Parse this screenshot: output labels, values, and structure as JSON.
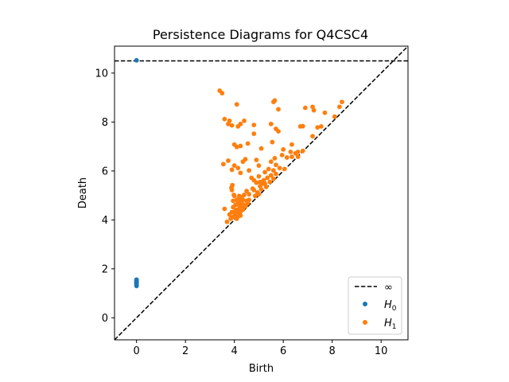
{
  "chart_data": {
    "type": "scatter",
    "title": "Persistence Diagrams for Q4CSC4",
    "xlabel": "Birth",
    "ylabel": "Death",
    "xlim": [
      -0.9,
      11.1
    ],
    "ylim": [
      -0.9,
      11.1
    ],
    "xticks": [
      0,
      2,
      4,
      6,
      8,
      10
    ],
    "yticks": [
      0,
      2,
      4,
      6,
      8,
      10
    ],
    "grid": false,
    "legend_position": "lower-right",
    "diagonal": {
      "style": "dashed",
      "color": "#000000"
    },
    "infinity_line": {
      "y": 10.5,
      "label": "∞",
      "style": "dashed",
      "color": "#000000"
    },
    "series": [
      {
        "name": "H0",
        "label_main": "H",
        "label_sub": "0",
        "color": "#1f77b4",
        "points": [
          [
            0,
            10.52
          ],
          [
            0,
            1.3
          ],
          [
            0,
            1.33
          ],
          [
            0,
            1.36
          ],
          [
            0,
            1.38
          ],
          [
            0,
            1.4
          ],
          [
            0,
            1.42
          ],
          [
            0,
            1.44
          ],
          [
            0,
            1.46
          ],
          [
            0,
            1.48
          ],
          [
            0,
            1.5
          ],
          [
            0,
            1.52
          ],
          [
            0,
            1.54
          ],
          [
            0,
            1.56
          ]
        ]
      },
      {
        "name": "H1",
        "label_main": "H",
        "label_sub": "1",
        "color": "#ff7f0e",
        "points": [
          [
            3.4,
            9.28
          ],
          [
            3.5,
            9.18
          ],
          [
            4.1,
            8.72
          ],
          [
            5.6,
            8.82
          ],
          [
            5.65,
            8.88
          ],
          [
            5.8,
            8.52
          ],
          [
            6.9,
            8.58
          ],
          [
            7.2,
            8.62
          ],
          [
            7.25,
            8.48
          ],
          [
            8.4,
            8.82
          ],
          [
            8.3,
            8.62
          ],
          [
            7.7,
            8.38
          ],
          [
            8.1,
            8.22
          ],
          [
            3.6,
            8.12
          ],
          [
            3.8,
            8.05
          ],
          [
            3.75,
            7.92
          ],
          [
            3.9,
            7.86
          ],
          [
            4.15,
            7.82
          ],
          [
            4.25,
            7.92
          ],
          [
            4.4,
            8.05
          ],
          [
            4.8,
            7.88
          ],
          [
            5.5,
            7.92
          ],
          [
            5.7,
            7.72
          ],
          [
            5.8,
            7.62
          ],
          [
            6.7,
            7.82
          ],
          [
            6.8,
            7.83
          ],
          [
            7.4,
            7.78
          ],
          [
            7.55,
            7.82
          ],
          [
            7.2,
            7.42
          ],
          [
            4.8,
            7.52
          ],
          [
            4.0,
            7.08
          ],
          [
            4.1,
            6.98
          ],
          [
            4.25,
            7.02
          ],
          [
            4.55,
            7.12
          ],
          [
            5.55,
            7.18
          ],
          [
            5.1,
            6.92
          ],
          [
            6.35,
            7.08
          ],
          [
            6.0,
            6.88
          ],
          [
            6.3,
            6.78
          ],
          [
            6.6,
            6.78
          ],
          [
            6.8,
            6.82
          ],
          [
            3.75,
            6.42
          ],
          [
            3.55,
            6.28
          ],
          [
            4.45,
            6.48
          ],
          [
            4.35,
            6.38
          ],
          [
            4.0,
            6.22
          ],
          [
            4.15,
            6.12
          ],
          [
            3.9,
            6.05
          ],
          [
            4.25,
            5.92
          ],
          [
            4.6,
            6.02
          ],
          [
            4.9,
            6.45
          ],
          [
            5.0,
            6.22
          ],
          [
            5.4,
            6.08
          ],
          [
            5.5,
            6.38
          ],
          [
            5.65,
            6.52
          ],
          [
            5.7,
            6.25
          ],
          [
            5.85,
            6.12
          ],
          [
            6.05,
            6.08
          ],
          [
            6.15,
            6.55
          ],
          [
            6.35,
            6.58
          ],
          [
            6.5,
            6.72
          ],
          [
            6.6,
            6.58
          ],
          [
            5.95,
            6.65
          ],
          [
            5.6,
            6.02
          ],
          [
            5.25,
            5.95
          ],
          [
            4.7,
            5.72
          ],
          [
            4.8,
            5.62
          ],
          [
            4.9,
            5.52
          ],
          [
            5.0,
            5.78
          ],
          [
            5.05,
            5.55
          ],
          [
            5.15,
            5.48
          ],
          [
            5.2,
            5.62
          ],
          [
            5.35,
            5.72
          ],
          [
            5.45,
            5.55
          ],
          [
            5.5,
            5.82
          ],
          [
            5.6,
            5.68
          ],
          [
            5.7,
            5.88
          ],
          [
            5.3,
            5.35
          ],
          [
            5.1,
            5.25
          ],
          [
            4.95,
            5.12
          ],
          [
            5.0,
            5.05
          ],
          [
            4.85,
            4.98
          ],
          [
            4.75,
            5.28
          ],
          [
            4.5,
            5.18
          ],
          [
            4.3,
            4.92
          ],
          [
            4.4,
            5.02
          ],
          [
            4.6,
            4.82
          ],
          [
            4.55,
            4.68
          ],
          [
            4.45,
            4.55
          ],
          [
            4.35,
            4.42
          ],
          [
            4.25,
            4.35
          ],
          [
            4.2,
            4.28
          ],
          [
            3.8,
            4.22
          ],
          [
            3.7,
            3.92
          ],
          [
            3.85,
            4.05
          ],
          [
            3.95,
            4.12
          ],
          [
            3.9,
            4.32
          ],
          [
            3.95,
            4.52
          ],
          [
            3.95,
            4.78
          ],
          [
            3.98,
            5.02
          ],
          [
            3.9,
            5.22
          ],
          [
            3.88,
            5.32
          ],
          [
            3.92,
            5.42
          ],
          [
            4.0,
            4.98
          ],
          [
            4.05,
            4.62
          ],
          [
            4.1,
            4.42
          ],
          [
            4.05,
            4.22
          ],
          [
            4.1,
            4.05
          ],
          [
            4.15,
            4.75
          ],
          [
            4.2,
            4.58
          ],
          [
            4.25,
            4.48
          ],
          [
            4.3,
            4.65
          ],
          [
            4.35,
            4.82
          ],
          [
            4.2,
            4.88
          ],
          [
            4.1,
            4.82
          ],
          [
            4.05,
            4.38
          ],
          [
            4.0,
            4.28
          ],
          [
            4.15,
            4.15
          ],
          [
            4.2,
            4.98
          ],
          [
            4.28,
            4.72
          ],
          [
            4.32,
            4.55
          ],
          [
            4.38,
            4.62
          ],
          [
            4.5,
            4.78
          ],
          [
            3.6,
            4.45
          ],
          [
            4.15,
            4.35
          ],
          [
            4.25,
            4.18
          ],
          [
            4.6,
            5.05
          ],
          [
            4.8,
            5.22
          ],
          [
            5.05,
            5.38
          ],
          [
            5.25,
            5.48
          ]
        ]
      }
    ]
  }
}
